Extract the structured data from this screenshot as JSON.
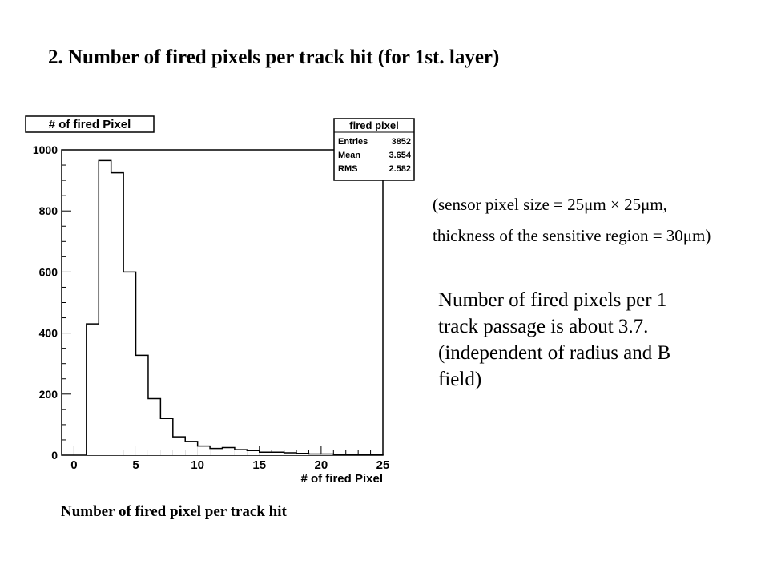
{
  "slide": {
    "title": "2. Number of fired pixels per track hit (for 1st. layer)",
    "caption": "Number of fired pixel per track hit",
    "formula_line1": "(sensor pixel size = 25μm × 25μm,",
    "formula_line2": "thickness of the sensitive region = 30μm)",
    "notes": [
      "Number of fired pixels per 1",
      "track passage is about 3.7.",
      "(independent of radius and B",
      "field)"
    ]
  },
  "chart_data": {
    "type": "bar",
    "title": "# of fired Pixel",
    "xlabel": "# of fired Pixel",
    "ylabel": "",
    "xlim": [
      -1,
      25
    ],
    "ylim": [
      0,
      1000
    ],
    "xticks": [
      0,
      5,
      10,
      15,
      20,
      25
    ],
    "yticks": [
      0,
      200,
      400,
      600,
      800,
      1000
    ],
    "bin_width": 1,
    "bin_low_edges": [
      1,
      2,
      3,
      4,
      5,
      6,
      7,
      8,
      9,
      10,
      11,
      12,
      13,
      14,
      15,
      16,
      17,
      18,
      19,
      20,
      21,
      22,
      23,
      24
    ],
    "values": [
      430,
      965,
      925,
      600,
      327,
      185,
      120,
      60,
      45,
      30,
      22,
      25,
      18,
      15,
      10,
      10,
      8,
      6,
      4,
      4,
      2,
      2,
      1,
      1
    ],
    "stats_box": {
      "title": "fired pixel",
      "rows": [
        {
          "label": "Entries",
          "value": "3852"
        },
        {
          "label": "Mean",
          "value": "3.654"
        },
        {
          "label": "RMS",
          "value": "2.582"
        }
      ]
    },
    "grid": false,
    "line_color": "#000000"
  }
}
